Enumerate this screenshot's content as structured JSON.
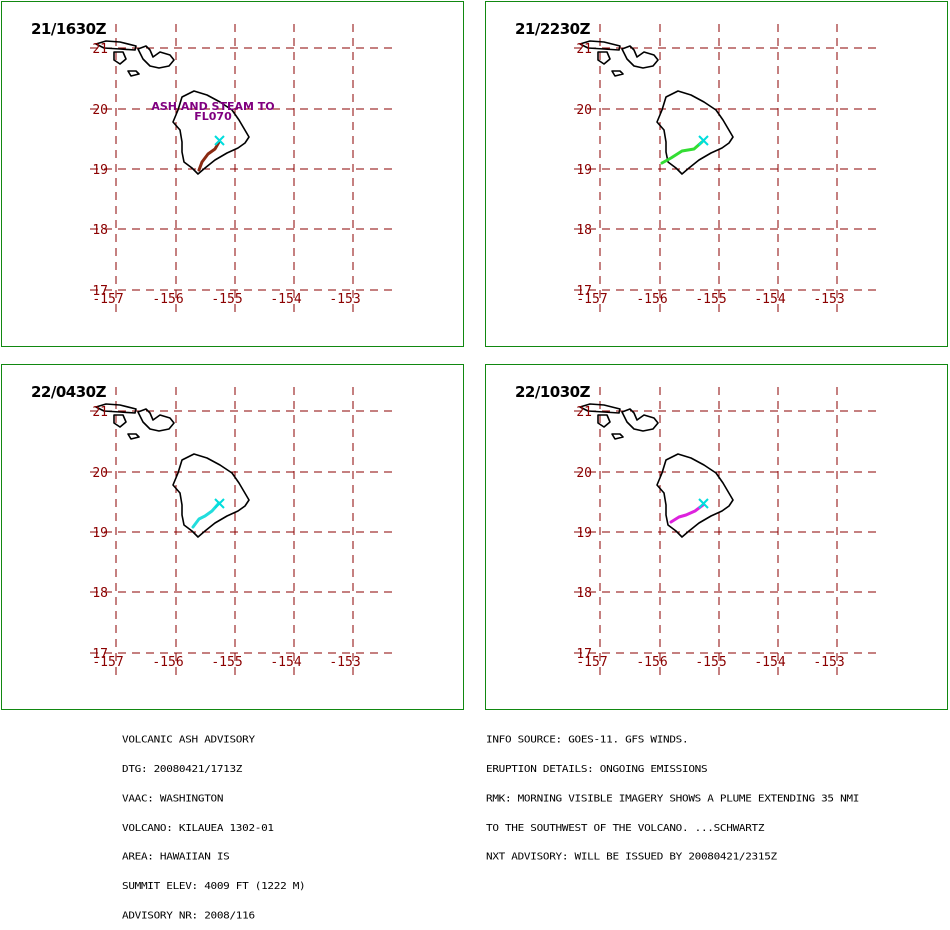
{
  "panels": [
    {
      "title": "21/1630Z",
      "annotation": [
        "ASH AND STEAM TO",
        "FL070"
      ],
      "plume_color": "#8b2a12"
    },
    {
      "title": "21/2230Z",
      "annotation": [],
      "plume_color": "#33dd33"
    },
    {
      "title": "22/0430Z",
      "annotation": [],
      "plume_color": "#22dddd"
    },
    {
      "title": "22/1030Z",
      "annotation": [],
      "plume_color": "#dd22dd"
    }
  ],
  "map": {
    "lon_ticks": [
      "-157",
      "-156",
      "-155",
      "-154",
      "-153"
    ],
    "lat_ticks": [
      "21",
      "20",
      "19",
      "18",
      "17"
    ],
    "grid_color": "#8b0000",
    "coast_color": "#000000",
    "volcano_marker_color": "#00dddd"
  },
  "advisory": {
    "lines": [
      "VOLCANIC ASH ADVISORY",
      "DTG: 20080421/1713Z",
      "VAAC: WASHINGTON",
      "VOLCANO: KILAUEA 1302-01",
      "AREA: HAWAIIAN IS",
      "SUMMIT ELEV: 4009 FT (1222 M)",
      "ADVISORY NR: 2008/116"
    ]
  },
  "info": {
    "lines": [
      "INFO SOURCE: GOES-11. GFS WINDS.",
      "ERUPTION DETAILS: ONGOING EMISSIONS",
      "RMK: MORNING VISIBLE IMAGERY SHOWS A PLUME EXTENDING 35 NMI",
      "TO THE SOUTHWEST OF THE VOLCANO. ...SCHWARTZ",
      "NXT ADVISORY: WILL BE ISSUED BY 20080421/2315Z"
    ]
  }
}
